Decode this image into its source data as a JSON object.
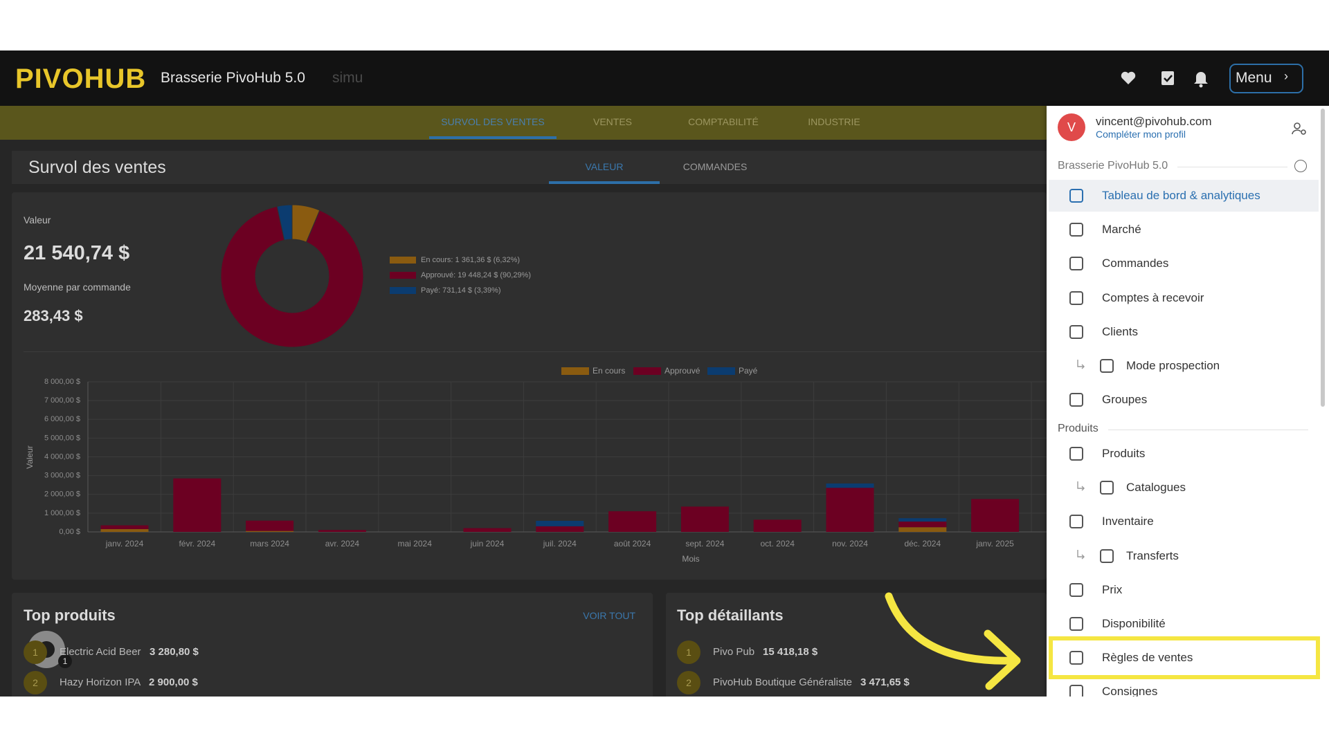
{
  "header": {
    "logo": "PIVOHUB",
    "title": "Brasserie PivoHub 5.0",
    "env": "simu",
    "menu": "Menu"
  },
  "nav": {
    "tabs": [
      "SURVOL DES VENTES",
      "VENTES",
      "COMPTABILITÉ",
      "INDUSTRIE"
    ]
  },
  "overview": {
    "title": "Survol des ventes",
    "tabs": [
      "VALEUR",
      "COMMANDES"
    ],
    "value_label": "Valeur",
    "value": "21 540,74 $",
    "average_label": "Moyenne par commande",
    "average": "283,43 $"
  },
  "chart_data": [
    {
      "type": "pie",
      "donut": true,
      "categories": [
        "En cours",
        "Approuvé",
        "Payé"
      ],
      "values": [
        1361.36,
        19448.24,
        731.14
      ],
      "value_labels": [
        "En cours: 1 361,36 $ (6,32%)",
        "Approuvé: 19 448,24 $ (90,29%)",
        "Payé: 731,14 $ (3,39%)"
      ],
      "colors": [
        "#8a5b10",
        "#6c0022",
        "#0b3c70"
      ]
    },
    {
      "type": "bar",
      "stacked": true,
      "categories": [
        "janv. 2024",
        "févr. 2024",
        "mars 2024",
        "avr. 2024",
        "mai 2024",
        "juin 2024",
        "juil. 2024",
        "août 2024",
        "sept. 2024",
        "oct. 2024",
        "nov. 2024",
        "déc. 2024",
        "janv. 2025"
      ],
      "series": [
        {
          "name": "En cours",
          "color": "#8a5b10",
          "values": [
            150,
            0,
            50,
            0,
            0,
            0,
            0,
            0,
            0,
            0,
            0,
            250,
            0
          ]
        },
        {
          "name": "Approuvé",
          "color": "#6c0022",
          "values": [
            200,
            2850,
            550,
            100,
            0,
            200,
            300,
            1100,
            1350,
            650,
            2350,
            300,
            1750
          ]
        },
        {
          "name": "Payé",
          "color": "#0b3c70",
          "values": [
            0,
            0,
            0,
            0,
            0,
            0,
            290,
            0,
            0,
            0,
            230,
            180,
            0
          ]
        }
      ],
      "ylim": [
        0,
        8000
      ],
      "yticks": [
        {
          "value": 0,
          "label": "0,00 $"
        },
        {
          "value": 1000,
          "label": "1 000,00 $"
        },
        {
          "value": 2000,
          "label": "2 000,00 $"
        },
        {
          "value": 3000,
          "label": "3 000,00 $"
        },
        {
          "value": 4000,
          "label": "4 000,00 $"
        },
        {
          "value": 5000,
          "label": "5 000,00 $"
        },
        {
          "value": 6000,
          "label": "6 000,00 $"
        },
        {
          "value": 7000,
          "label": "7 000,00 $"
        },
        {
          "value": 8000,
          "label": "8 000,00 $"
        }
      ],
      "xlabel": "Mois",
      "ylabel": "Valeur",
      "grid": true
    }
  ],
  "top_products": {
    "title": "Top produits",
    "action": "VOIR TOUT",
    "rows": [
      {
        "rank": 1,
        "name": "Electric Acid Beer",
        "value": "3 280,80 $"
      },
      {
        "rank": 2,
        "name": "Hazy Horizon IPA",
        "value": "2 900,00 $"
      }
    ]
  },
  "top_retailers": {
    "title": "Top détaillants",
    "rows": [
      {
        "rank": 1,
        "name": "Pivo Pub",
        "value": "15 418,18 $"
      },
      {
        "rank": 2,
        "name": "PivoHub Boutique Généraliste",
        "value": "3 471,65 $"
      }
    ]
  },
  "help_badge": 1,
  "sidebar": {
    "avatar": "V",
    "email": "vincent@pivohub.com",
    "profile_link": "Compléter mon profil",
    "sections": [
      {
        "title": "Brasserie PivoHub 5.0",
        "items": [
          {
            "label": "Tableau de bord & analytiques",
            "active": true
          },
          {
            "label": "Marché"
          },
          {
            "label": "Commandes"
          },
          {
            "label": "Comptes à recevoir"
          },
          {
            "label": "Clients"
          },
          {
            "label": "Mode prospection",
            "sub": true
          },
          {
            "label": "Groupes"
          }
        ]
      },
      {
        "title": "Produits",
        "items": [
          {
            "label": "Produits"
          },
          {
            "label": "Catalogues",
            "sub": true
          },
          {
            "label": "Inventaire"
          },
          {
            "label": "Transferts",
            "sub": true
          },
          {
            "label": "Prix"
          },
          {
            "label": "Disponibilité"
          },
          {
            "label": "Règles de ventes",
            "highlighted": true
          },
          {
            "label": "Consignes"
          }
        ]
      }
    ]
  }
}
